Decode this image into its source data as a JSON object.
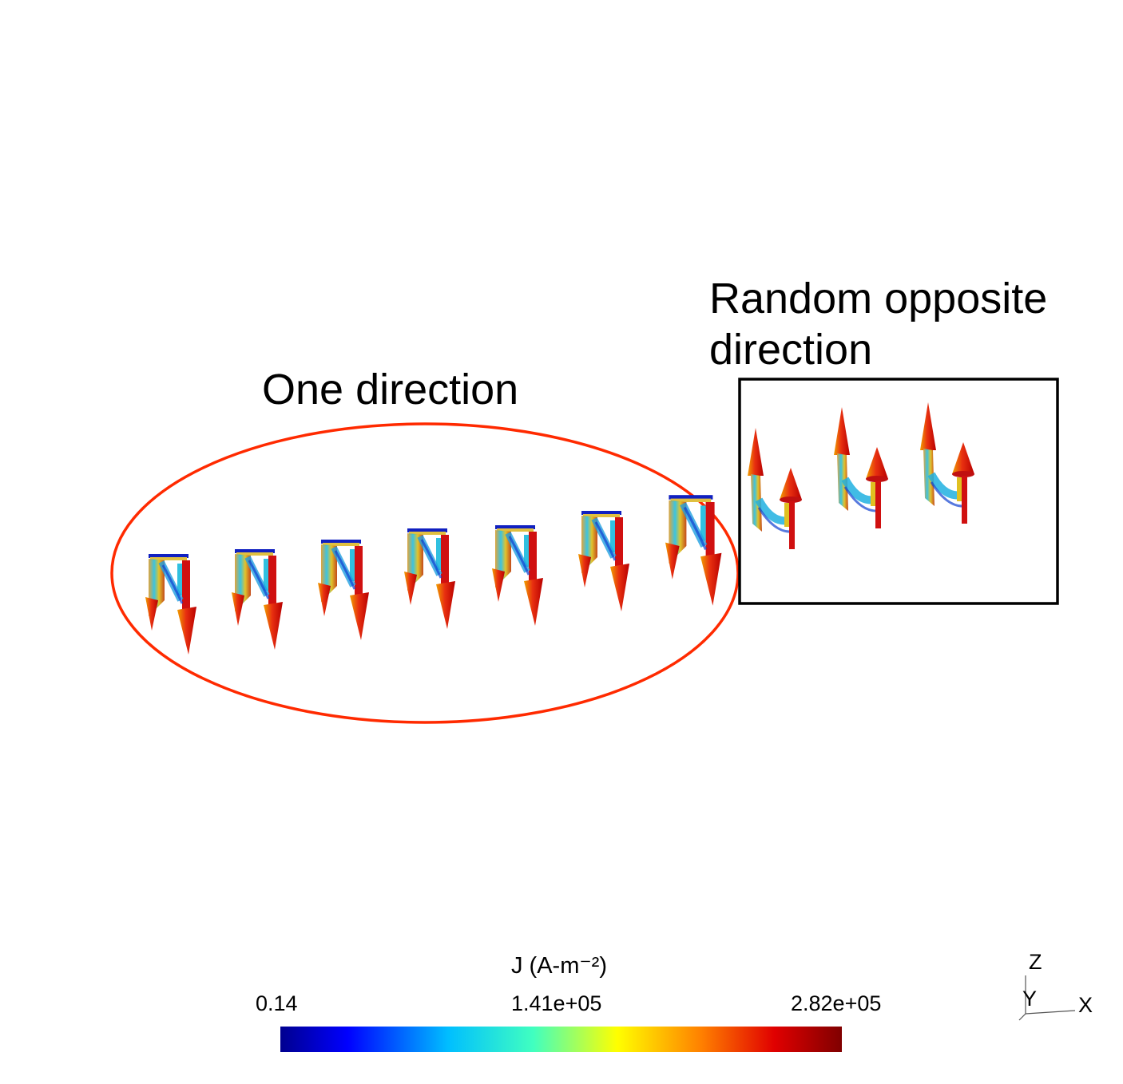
{
  "annotations": {
    "left_group": "One direction",
    "right_group_line1": "Random opposite",
    "right_group_line2": "direction"
  },
  "colorbar": {
    "title": "J (A-m⁻²)",
    "ticks": [
      "0.14",
      "1.41e+05",
      "2.82e+05"
    ],
    "range": [
      0.14,
      282000
    ],
    "colormap": "jet",
    "colors": [
      "#00008f",
      "#0000ff",
      "#00bfff",
      "#40ffc0",
      "#ffff00",
      "#ff8000",
      "#e00000",
      "#800000"
    ]
  },
  "axes_triad": {
    "z": "Z",
    "y": "Y",
    "x": "X"
  },
  "marker_colors": {
    "ellipse": "#ff2a00",
    "box": "#000000"
  },
  "groups": {
    "one_direction": {
      "count": 7,
      "arrow_direction": "down"
    },
    "random_opposite": {
      "count": 3,
      "arrow_direction": "up"
    }
  }
}
